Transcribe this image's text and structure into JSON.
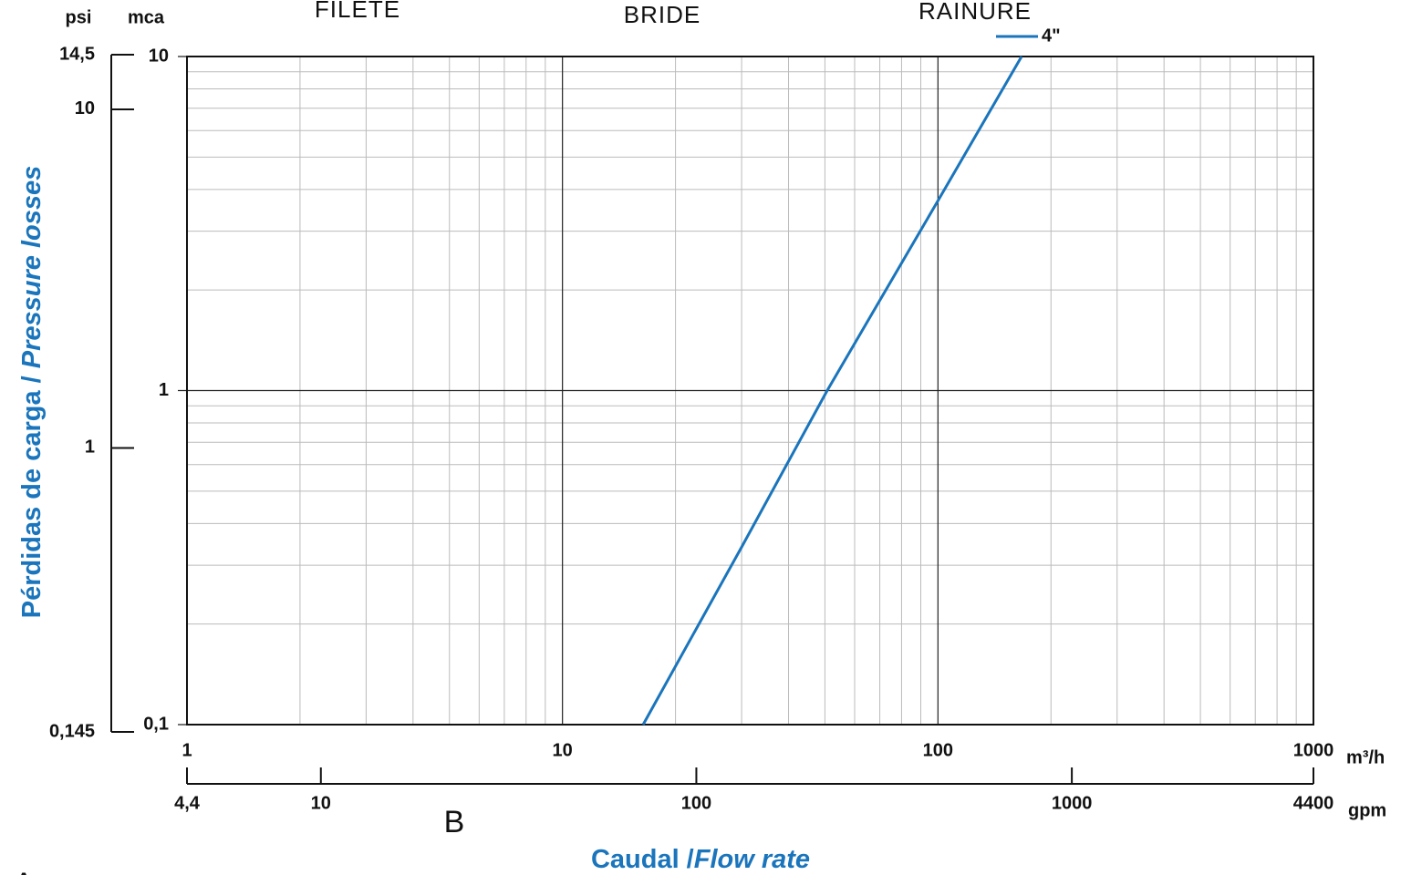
{
  "chart_data": {
    "type": "line",
    "titles": [
      "FILETE",
      "BRIDE",
      "RAINURE"
    ],
    "y_unit_left": "psi",
    "y_unit": "mca",
    "x_unit": "m³/h",
    "x2_unit": "gpm",
    "ylabel": [
      "Pérdidas de carga / ",
      "Pressure losses"
    ],
    "xlabel": [
      "Caudal /",
      "Flow rate"
    ],
    "annotations": [
      "B",
      "A"
    ],
    "log_x": true,
    "log_y": true,
    "grid": true,
    "legend": "top-right",
    "x": [
      16.4,
      30,
      50.7,
      100,
      167
    ],
    "series": [
      {
        "name": "4\"",
        "color": "#1a75bc",
        "values": [
          0.1,
          0.34,
          1,
          3.7,
          10
        ]
      }
    ],
    "xlim": [
      1,
      1000
    ],
    "xticks": [
      1,
      10,
      100,
      1000
    ],
    "x2lim": [
      4.4,
      4400
    ],
    "x2ticks": [
      {
        "value": 4.4,
        "label": "4,4"
      },
      10,
      100,
      1000,
      4400
    ],
    "ylim": [
      0.1,
      10
    ],
    "yticks": [
      {
        "value": 0.1,
        "label": "0,1"
      },
      1,
      10
    ],
    "y2lim": [
      0.145,
      14.5
    ],
    "y2ticks": [
      {
        "value": 0.145,
        "label": "0,145"
      },
      1,
      10,
      {
        "value": 14.5,
        "label": "14,5"
      }
    ]
  }
}
